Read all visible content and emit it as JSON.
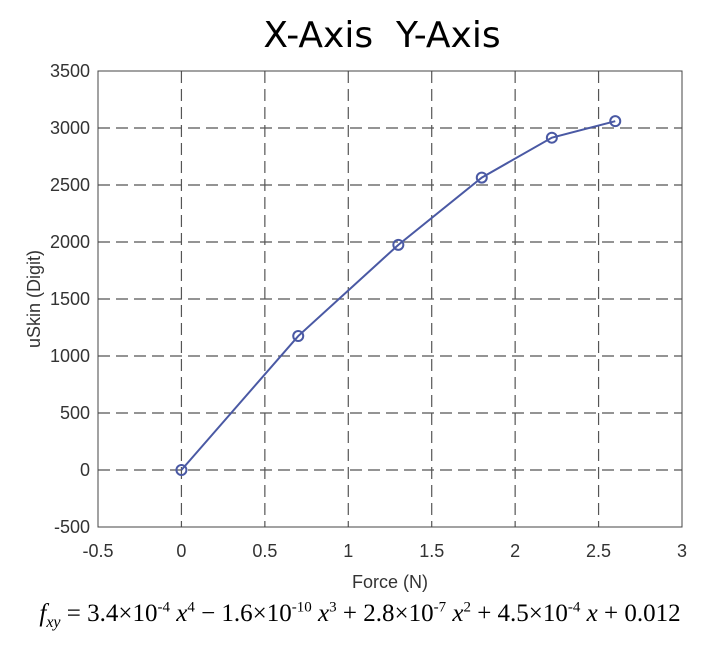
{
  "chart_data": {
    "type": "line",
    "title": "X-Axis  Y-Axis",
    "xlabel": "Force (N)",
    "ylabel": "uSkin (Digit)",
    "xlim": [
      -0.5,
      3
    ],
    "ylim": [
      -500,
      3500
    ],
    "xticks": [
      -0.5,
      0,
      0.5,
      1,
      1.5,
      2,
      2.5,
      3
    ],
    "xtick_labels": [
      "-0.5",
      "0",
      "0.5",
      "1",
      "1.5",
      "2",
      "2.5",
      "3"
    ],
    "yticks": [
      -500,
      0,
      500,
      1000,
      1500,
      2000,
      2500,
      3000,
      3500
    ],
    "ytick_labels": [
      "-500",
      "0",
      "500",
      "1000",
      "1500",
      "2000",
      "2500",
      "3000",
      "3500"
    ],
    "grid": true,
    "series": [
      {
        "x": [
          0,
          0.7,
          1.3,
          1.8,
          2.22,
          2.6
        ],
        "y": [
          0,
          1175,
          1975,
          2565,
          2915,
          3060
        ],
        "color": "#4a59a4",
        "marker": "circle"
      }
    ]
  },
  "formula": "f_xy = 3.4×10^-4 x^4 − 1.6×10^-10 x^3 + 2.8×10^-7 x^2 + 4.5×10^-4 x + 0.012"
}
